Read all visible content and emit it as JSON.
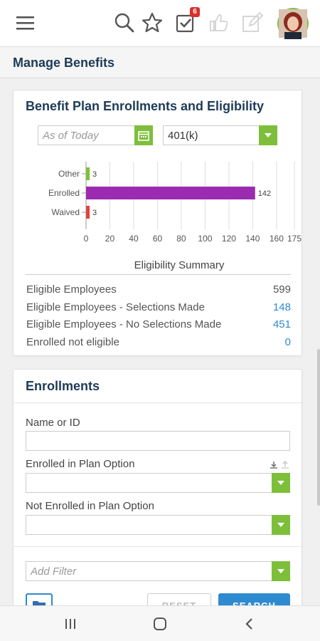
{
  "header": {
    "title": "Manage Benefits",
    "notification_badge": "6"
  },
  "benefits_card": {
    "title": "Benefit Plan Enrollments and Eligibility",
    "date_placeholder": "As of Today",
    "plan_select": "401(k)",
    "chart_data": {
      "type": "bar",
      "orientation": "horizontal",
      "title": "Eligibility Summary",
      "categories": [
        "Other",
        "Enrolled",
        "Waived"
      ],
      "values": [
        3,
        142,
        3
      ],
      "colors": [
        "#7dbf3a",
        "#9b2cb1",
        "#e0443a"
      ],
      "xlim": [
        0,
        175
      ],
      "xticks": [
        0,
        20,
        40,
        60,
        80,
        100,
        120,
        140,
        160,
        175
      ],
      "grid": true
    },
    "stats": [
      {
        "label": "Eligible Employees",
        "value": "599",
        "link": false
      },
      {
        "label": "Eligible Employees - Selections Made",
        "value": "148",
        "link": true
      },
      {
        "label": "Eligible Employees - No Selections Made",
        "value": "451",
        "link": true
      },
      {
        "label": "Enrolled not eligible",
        "value": "0",
        "link": true
      }
    ]
  },
  "enrollments_card": {
    "title": "Enrollments",
    "name_label": "Name or ID",
    "enrolled_label": "Enrolled in Plan Option",
    "not_enrolled_label": "Not Enrolled in Plan Option",
    "filter_placeholder": "Add Filter",
    "reset_label": "RESET",
    "search_label": "SEARCH"
  },
  "colors": {
    "accent_green": "#7dbf3a",
    "title_navy": "#1d3b57",
    "link_blue": "#2e8bd0"
  },
  "icons": [
    "menu-icon",
    "search-icon",
    "star-icon",
    "tasks-icon",
    "thumbs-up-icon",
    "edit-icon",
    "calendar-icon",
    "download-icon",
    "upload-icon",
    "folder-icon",
    "recent-apps-icon",
    "home-icon",
    "back-icon"
  ]
}
